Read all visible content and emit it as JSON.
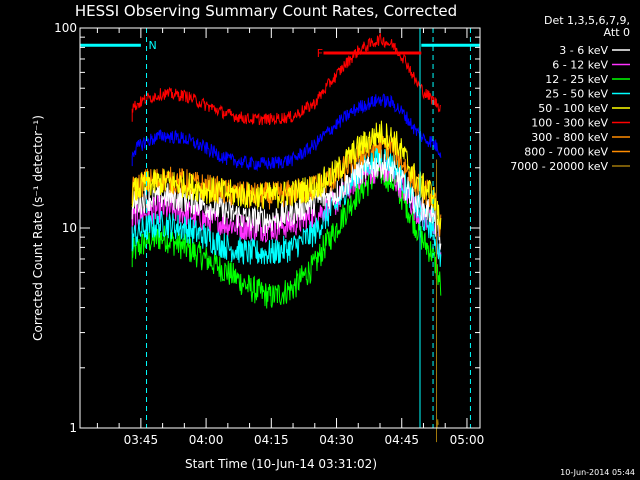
{
  "chart_data": {
    "type": "line",
    "title": "HESSI Observing Summary Count Rates, Corrected",
    "xlabel": "Start Time (10-Jun-14 03:31:02)",
    "ylabel": "Corrected Count Rate (s⁻¹ detector⁻¹)",
    "yscale": "log",
    "ylim": [
      1,
      100
    ],
    "y_ticks": [
      1,
      10,
      100
    ],
    "y_tick_labels": [
      "1",
      "10",
      "100"
    ],
    "xlim_minutes": [
      211,
      303
    ],
    "x_ticks_minutes": [
      225,
      240,
      255,
      270,
      285,
      300
    ],
    "x_tick_labels": [
      "03:45",
      "04:00",
      "04:15",
      "04:30",
      "04:45",
      "05:00"
    ],
    "legend_header": [
      "Det 1,3,5,6,7,9,",
      "Att 0"
    ],
    "legend_placement": "right-outside",
    "series": [
      {
        "name": "3 - 6 keV",
        "color": "#ffffff",
        "x": [
          223,
          226,
          230,
          235,
          240,
          245,
          250,
          255,
          260,
          265,
          270,
          275,
          280,
          283,
          286,
          288,
          290,
          292,
          294
        ],
        "values": [
          13,
          14,
          14.5,
          14,
          13,
          12,
          11,
          11,
          12,
          13.5,
          15,
          19,
          21,
          19,
          16,
          13.5,
          12.5,
          12,
          8
        ]
      },
      {
        "name": "6 - 12 keV",
        "color": "#ff33ff",
        "x": [
          223,
          226,
          230,
          235,
          240,
          245,
          250,
          255,
          260,
          265,
          270,
          275,
          280,
          283,
          286,
          288,
          290,
          292,
          294
        ],
        "values": [
          11,
          12,
          12.5,
          12,
          11,
          10.5,
          10,
          10,
          10.5,
          11.5,
          13.5,
          18,
          20,
          18,
          15,
          12.5,
          11.5,
          10.5,
          7
        ]
      },
      {
        "name": "12 - 25 keV",
        "color": "#00ff00",
        "x": [
          223,
          226,
          230,
          235,
          240,
          245,
          250,
          255,
          260,
          265,
          270,
          275,
          280,
          283,
          286,
          288,
          290,
          292,
          294
        ],
        "values": [
          7.5,
          8.5,
          9,
          8,
          7,
          6,
          5,
          4.5,
          5,
          6.5,
          10,
          15,
          19,
          17,
          13,
          10.5,
          8.5,
          7.5,
          5
        ]
      },
      {
        "name": "25 - 50 keV",
        "color": "#00ffff",
        "x": [
          223,
          226,
          230,
          235,
          240,
          245,
          250,
          255,
          260,
          265,
          270,
          275,
          280,
          283,
          286,
          288,
          290,
          292,
          294
        ],
        "values": [
          9,
          10,
          10.5,
          10,
          9,
          8,
          7.5,
          7.5,
          8,
          9.5,
          13,
          19,
          23,
          21,
          16,
          13,
          11,
          10,
          7
        ]
      },
      {
        "name": "50 - 100 keV",
        "color": "#ffff00",
        "x": [
          223,
          226,
          230,
          235,
          240,
          245,
          250,
          255,
          260,
          265,
          270,
          275,
          280,
          283,
          286,
          288,
          290,
          292,
          294
        ],
        "values": [
          15,
          16.5,
          17,
          16.5,
          15.5,
          15,
          14.5,
          14.5,
          15,
          16,
          19,
          25,
          30,
          28,
          22,
          18,
          16,
          15,
          10
        ]
      },
      {
        "name": "100 - 300 keV",
        "color": "#ff0000",
        "x": [
          223,
          226,
          230,
          235,
          240,
          245,
          250,
          255,
          260,
          265,
          270,
          275,
          280,
          283,
          286,
          288,
          290,
          292,
          294
        ],
        "values": [
          40,
          44,
          47,
          46,
          41,
          37,
          35,
          35,
          36,
          42,
          58,
          77,
          88,
          82,
          68,
          55,
          48,
          44,
          40
        ]
      },
      {
        "name": "300 - 800 keV",
        "color": "#ff8c00",
        "x": [
          223,
          226,
          230,
          235,
          240,
          245,
          250,
          255,
          260,
          265,
          270,
          275,
          280,
          283,
          286,
          288,
          290,
          292,
          294
        ],
        "values": [
          15.5,
          17,
          17.5,
          17,
          16,
          15,
          14.5,
          14.5,
          15,
          16,
          18,
          23,
          26,
          25,
          20,
          17,
          15.5,
          14.5,
          10
        ]
      },
      {
        "name": "800 - 7000 keV",
        "color": "#0000ff",
        "x": [
          223,
          226,
          230,
          235,
          240,
          245,
          250,
          255,
          260,
          265,
          270,
          275,
          280,
          283,
          286,
          288,
          290,
          292,
          294
        ],
        "values": [
          24,
          27,
          29,
          28,
          25,
          22,
          21,
          21,
          22,
          26,
          33,
          40,
          44,
          42,
          36,
          31,
          28,
          27,
          24
        ]
      },
      {
        "name": "7000 - 20000 keV",
        "color": "#a0780a",
        "x": [
          293,
          293.5
        ],
        "values": [
          1,
          1
        ]
      }
    ],
    "annotations": [
      {
        "text": "N",
        "color": "#00ffff",
        "bar_x": [
          211,
          225
        ],
        "bar_y": 82,
        "label_x": 226.3,
        "label_y": 82
      },
      {
        "text": "N",
        "color": "#00ffff",
        "bar_x": [
          289.5,
          303
        ],
        "bar_y": 82,
        "label_x": null,
        "label_y": null
      },
      {
        "text": "F",
        "color": "#ff0000",
        "bar_x": [
          267,
          289.5
        ],
        "bar_y": 75,
        "label_x": 265,
        "label_y": 75
      }
    ],
    "vertical_lines": [
      {
        "x": 211,
        "color": "#00ffff",
        "style": "solid"
      },
      {
        "x": 226.3,
        "color": "#00ffff",
        "style": "dashed"
      },
      {
        "x": 289.2,
        "color": "#00ffff",
        "style": "solid"
      },
      {
        "x": 292.2,
        "color": "#00ffff",
        "style": "dashed"
      },
      {
        "x": 300.8,
        "color": "#00ffff",
        "style": "dashed"
      }
    ],
    "footer": "10-Jun-2014 05:44"
  }
}
